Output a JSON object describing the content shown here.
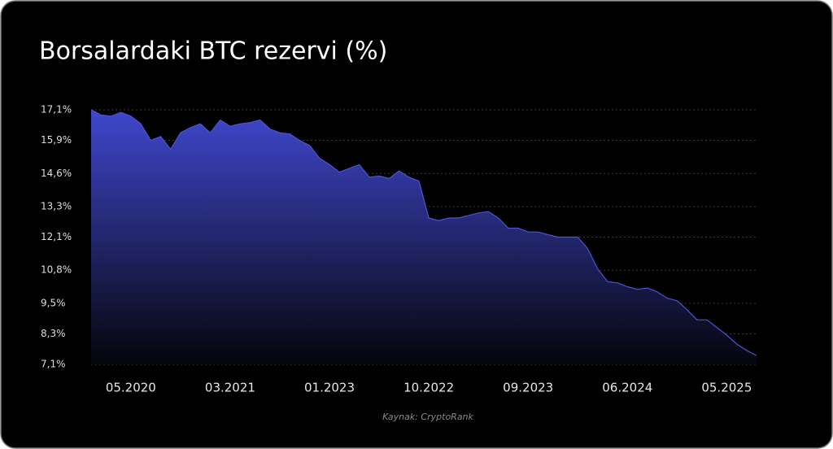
{
  "chart_data": {
    "type": "area",
    "title": "Borsalardaki BTC rezervi (%)",
    "source": "Kaynak: CryptoRank",
    "categories": [
      null,
      null,
      null,
      null,
      "05.2020",
      null,
      null,
      null,
      null,
      null,
      null,
      null,
      null,
      null,
      "03.2021",
      null,
      null,
      null,
      null,
      null,
      null,
      null,
      null,
      null,
      "01.2023",
      null,
      null,
      null,
      null,
      null,
      null,
      null,
      null,
      null,
      "10.2022",
      null,
      null,
      null,
      null,
      null,
      null,
      null,
      null,
      null,
      "09.2023",
      null,
      null,
      null,
      null,
      null,
      null,
      null,
      null,
      null,
      "06.2024",
      null,
      null,
      null,
      null,
      null,
      null,
      null,
      null,
      null,
      "05.2025",
      null,
      null,
      null
    ],
    "values": [
      17.1,
      16.9,
      16.85,
      17.0,
      16.85,
      16.55,
      15.9,
      16.05,
      15.55,
      16.2,
      16.4,
      16.55,
      16.2,
      16.7,
      16.45,
      16.55,
      16.6,
      16.7,
      16.35,
      16.2,
      16.15,
      15.9,
      15.7,
      15.2,
      14.95,
      14.65,
      14.8,
      14.95,
      14.45,
      14.5,
      14.4,
      14.7,
      14.45,
      14.3,
      12.85,
      12.75,
      12.85,
      12.85,
      12.95,
      13.05,
      13.1,
      12.85,
      12.45,
      12.45,
      12.3,
      12.3,
      12.2,
      12.1,
      12.1,
      12.1,
      11.65,
      10.85,
      10.35,
      10.3,
      10.15,
      10.05,
      10.1,
      9.95,
      9.7,
      9.6,
      9.25,
      8.85,
      8.85,
      8.55,
      8.25,
      7.9,
      7.65,
      7.45
    ],
    "color": "#4b53d6",
    "ylim": [
      7.1,
      17.1
    ],
    "yticks": [
      {
        "value": 7.1,
        "label": "7,1%"
      },
      {
        "value": 8.3,
        "label": "8,3%"
      },
      {
        "value": 9.5,
        "label": "9,5%"
      },
      {
        "value": 10.8,
        "label": "10,8%"
      },
      {
        "value": 12.1,
        "label": "12,1%"
      },
      {
        "value": 13.3,
        "label": "13,3%"
      },
      {
        "value": 14.6,
        "label": "14,6%"
      },
      {
        "value": 15.9,
        "label": "15,9%"
      },
      {
        "value": 17.1,
        "label": "17,1%"
      }
    ],
    "grid": true
  }
}
